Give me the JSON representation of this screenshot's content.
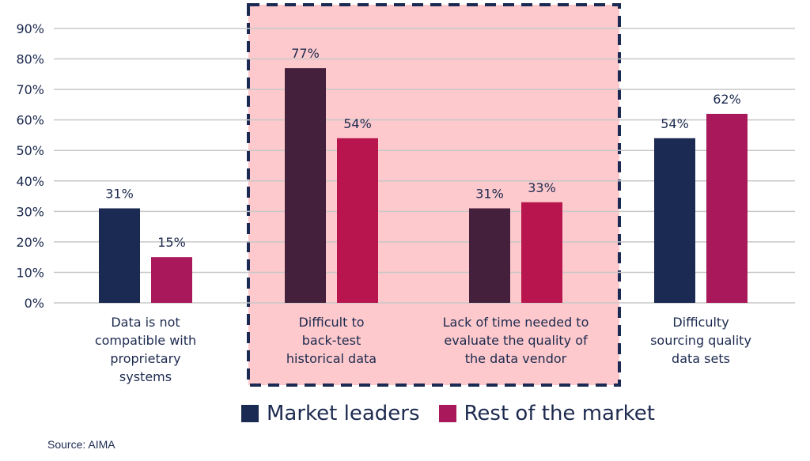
{
  "chart_data": {
    "type": "bar",
    "categories": [
      [
        "Data is not",
        "compatible with",
        "proprietary",
        "systems"
      ],
      [
        "Difficult to",
        "back-test",
        "historical data"
      ],
      [
        "Lack of time needed to",
        "evaluate the quality of",
        "the data vendor"
      ],
      [
        "Difficulty",
        "sourcing quality",
        "data sets"
      ]
    ],
    "series": [
      {
        "name": "Market leaders",
        "values": [
          31,
          77,
          31,
          54
        ]
      },
      {
        "name": "Rest of the market",
        "values": [
          15,
          54,
          33,
          62
        ]
      }
    ],
    "value_labels": [
      [
        "31%",
        "77%",
        "31%",
        "54%"
      ],
      [
        "15%",
        "54%",
        "33%",
        "62%"
      ]
    ],
    "yticks": [
      "0%",
      "10%",
      "20%",
      "30%",
      "40%",
      "50%",
      "60%",
      "70%",
      "80%",
      "90%"
    ],
    "ylim": [
      0,
      90
    ],
    "grid": true,
    "highlighted_categories": [
      1,
      2
    ],
    "legend_position": "bottom",
    "colors": {
      "market_leaders": "#1b2a52",
      "market_leaders_highlighted": "#45203c",
      "rest_of_market": "#a8185a",
      "rest_of_market_highlighted": "#b8154e",
      "highlight_fill": "#fdc9cc",
      "highlight_border": "#1b2a52",
      "grid": "#c8c8c8"
    }
  },
  "legend": {
    "items": [
      {
        "label": "Market leaders",
        "color": "#1b2a52"
      },
      {
        "label": "Rest of the market",
        "color": "#a8185a"
      }
    ]
  },
  "source": "Source: AIMA"
}
